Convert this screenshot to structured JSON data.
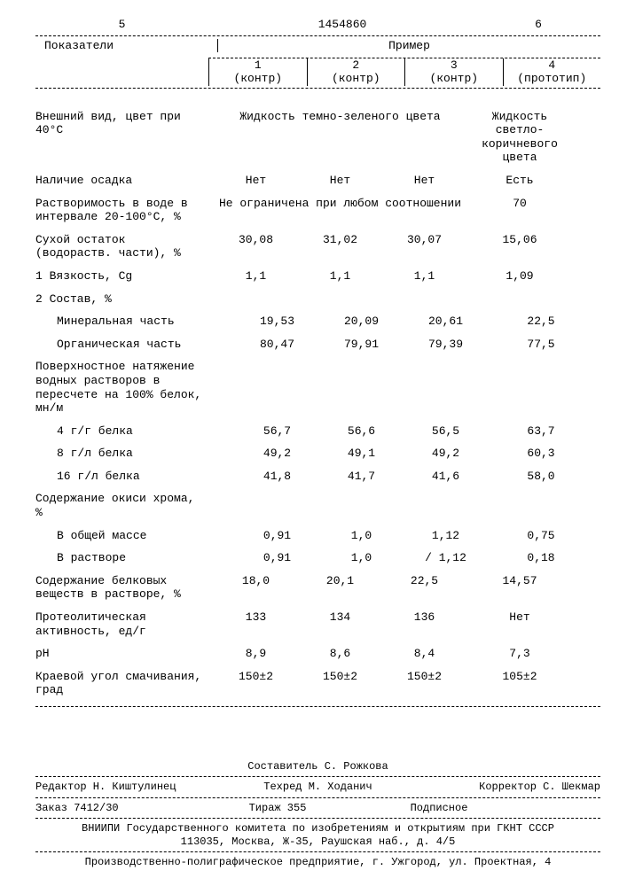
{
  "header": {
    "leftnum": "5",
    "doc_number": "1454860",
    "rightnum": "6",
    "row_label_title": "Показатели",
    "example_title": "Пример",
    "cols": [
      {
        "n": "1",
        "s": "(контр)"
      },
      {
        "n": "2",
        "s": "(контр)"
      },
      {
        "n": "3",
        "s": "(контр)"
      },
      {
        "n": "4",
        "s": "(прототип)"
      }
    ]
  },
  "rows": [
    {
      "label": "Внешний вид, цвет при 40°С",
      "span123": "Жидкость темно-зеленого цвета",
      "c4": "Жидкость светло-коричневого цвета"
    },
    {
      "label": "Наличие осадка",
      "c1": "Нет",
      "c2": "Нет",
      "c3": "Нет",
      "c4": "Есть"
    },
    {
      "label": "Растворимость в воде в интервале 20-100°С, %",
      "span123": "Не ограничена при любом соотношении",
      "c4": "70"
    },
    {
      "label": "Сухой остаток (водораств. части), %",
      "c1": "30,08",
      "c2": "31,02",
      "c3": "30,07",
      "c4": "15,06"
    },
    {
      "label": "1 Вязкость, Cg",
      "c1": "1,1",
      "c2": "1,1",
      "c3": "1,1",
      "c4": "1,09"
    },
    {
      "label": "2 Состав, %"
    },
    {
      "label": "Минеральная часть",
      "indent": true,
      "c1": "19,53",
      "c2": "20,09",
      "c3": "20,61",
      "c4": "22,5"
    },
    {
      "label": "Органическая часть",
      "indent": true,
      "c1": "80,47",
      "c2": "79,91",
      "c3": "79,39",
      "c4": "77,5"
    },
    {
      "label": "Поверхностное натяжение водных растворов в пересчете на 100% белок, мн/м"
    },
    {
      "label": "4 г/г белка",
      "indent": true,
      "c1": "56,7",
      "c2": "56,6",
      "c3": "56,5",
      "c4": "63,7"
    },
    {
      "label": "8 г/л белка",
      "indent": true,
      "c1": "49,2",
      "c2": "49,1",
      "c3": "49,2",
      "c4": "60,3"
    },
    {
      "label": "16 г/л белка",
      "indent": true,
      "c1": "41,8",
      "c2": "41,7",
      "c3": "41,6",
      "c4": "58,0"
    },
    {
      "label": "Содержание окиси хрома, %"
    },
    {
      "label": "В общей массе",
      "indent": true,
      "c1": "0,91",
      "c2": "1,0",
      "c3": "1,12",
      "c4": "0,75"
    },
    {
      "label": "В растворе",
      "indent": true,
      "c1": "0,91",
      "c2": "1,0",
      "c3": "/ 1,12",
      "c4": "0,18"
    },
    {
      "label": "Содержание белковых веществ в растворе, %",
      "c1": "18,0",
      "c2": "20,1",
      "c3": "22,5",
      "c4": "14,57"
    },
    {
      "label": "Протеолитическая активность, ед/г",
      "c1": "133",
      "c2": "134",
      "c3": "136",
      "c4": "Нет"
    },
    {
      "label": "pH",
      "c1": "8,9",
      "c2": "8,6",
      "c3": "8,4",
      "c4": "7,3"
    },
    {
      "label": "Краевой угол смачивания, град",
      "c1": "150±2",
      "c2": "150±2",
      "c3": "150±2",
      "c4": "105±2"
    }
  ],
  "footer": {
    "compiler": "Составитель С. Рожкова",
    "editor": "Редактор Н. Киштулинец",
    "tech": "Техред М. Ходанич",
    "corrector": "Корректор С. Шекмар",
    "order": "Заказ 7412/30",
    "tirage": "Тираж 355",
    "subscr": "Подписное",
    "org1": "ВНИИПИ Государственного комитета по изобретениям и открытиям при ГКНТ СССР",
    "org2": "113035, Москва, Ж-35, Раушская наб., д. 4/5",
    "print": "Производственно-полиграфическое предприятие, г. Ужгород, ул. Проектная, 4"
  }
}
